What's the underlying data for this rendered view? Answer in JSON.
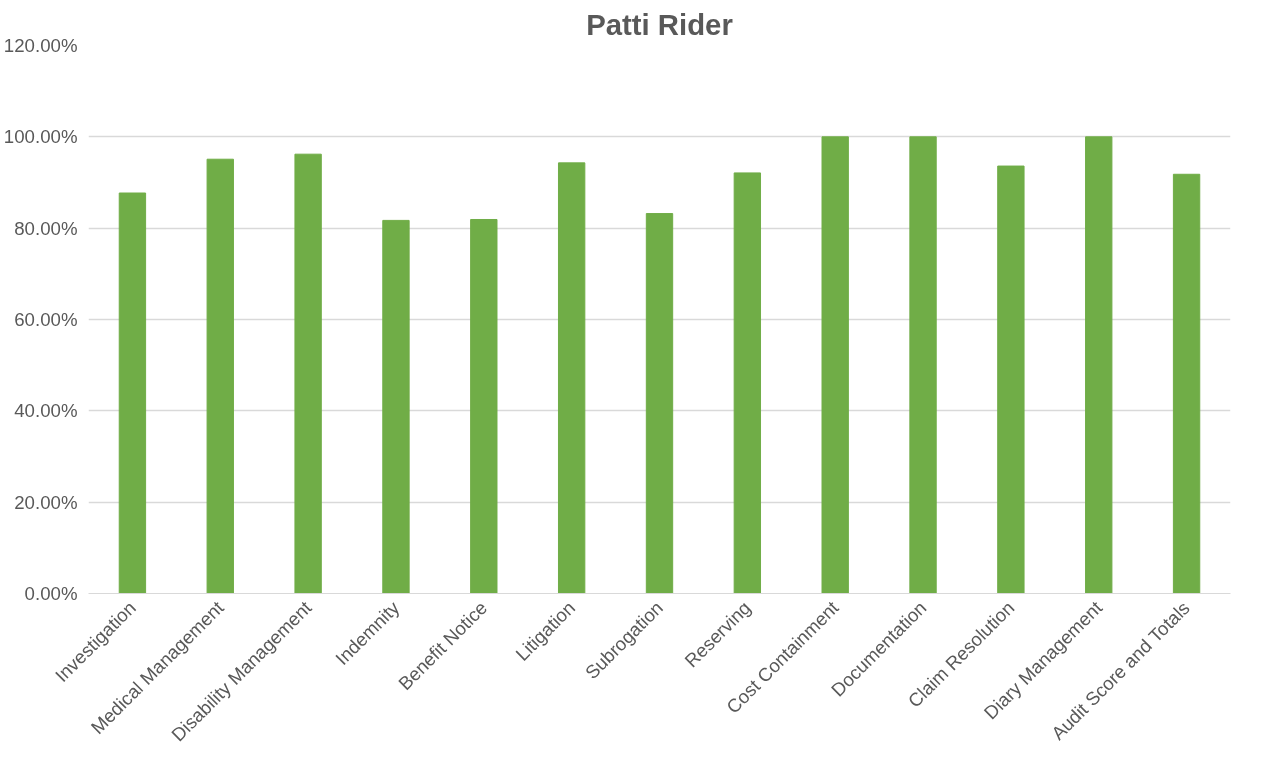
{
  "chart_data": {
    "type": "bar",
    "title": "Patti Rider",
    "categories": [
      "Investigation",
      "Medical Management",
      "Disability Management",
      "Indemnity",
      "Benefit Notice",
      "Litigation",
      "Subrogation",
      "Reserving",
      "Cost Containment",
      "Documentation",
      "Claim Resolution",
      "Diary Management",
      "Audit Score and Totals"
    ],
    "values": [
      87.7,
      95.1,
      96.2,
      81.7,
      81.9,
      94.3,
      83.2,
      92.1,
      100,
      100,
      93.6,
      100,
      91.8
    ],
    "color": "#70ad47",
    "ylim": [
      0,
      120
    ],
    "yticks": [
      {
        "value": 0,
        "label": "0.00%"
      },
      {
        "value": 20,
        "label": "20.00%"
      },
      {
        "value": 40,
        "label": "40.00%"
      },
      {
        "value": 60,
        "label": "60.00%"
      },
      {
        "value": 80,
        "label": "80.00%"
      },
      {
        "value": 100,
        "label": "100.00%"
      },
      {
        "value": 120,
        "label": "120.00%"
      }
    ],
    "grid": "y"
  }
}
